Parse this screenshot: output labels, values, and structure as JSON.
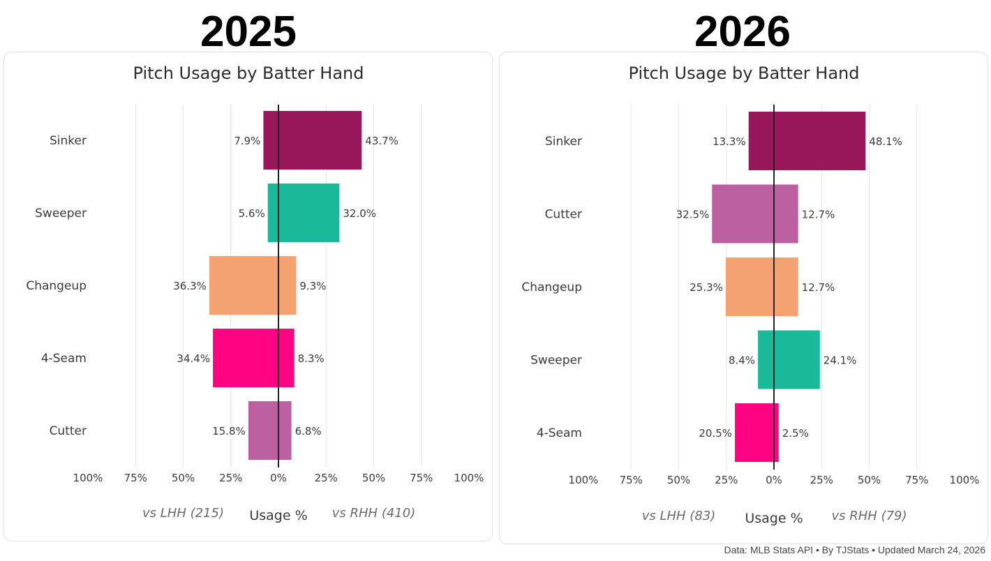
{
  "footer": "Data: MLB Stats API • By TJStats • Updated March 24, 2026",
  "chart_data": [
    {
      "type": "bar",
      "orientation": "horizontal-diverging",
      "year_label": "2025",
      "title": "Pitch Usage by Batter Hand",
      "xlabel": "Usage %",
      "xlim": [
        -100,
        100
      ],
      "x_tick_labels": [
        "100%",
        "75%",
        "50%",
        "25%",
        "0%",
        "25%",
        "50%",
        "75%",
        "100%"
      ],
      "left_label": "vs LHH (215)",
      "right_label": "vs RHH (410)",
      "categories": [
        "Sinker",
        "Sweeper",
        "Changeup",
        "4-Seam",
        "Cutter"
      ],
      "colors": [
        "#98165a",
        "#1ab99a",
        "#f5a272",
        "#fe0482",
        "#bc5fa0"
      ],
      "series": [
        {
          "name": "vs LHH",
          "values": [
            7.9,
            5.6,
            36.3,
            34.4,
            15.8
          ],
          "labels": [
            "7.9%",
            "5.6%",
            "36.3%",
            "34.4%",
            "15.8%"
          ]
        },
        {
          "name": "vs RHH",
          "values": [
            43.7,
            32.0,
            9.3,
            8.3,
            6.8
          ],
          "labels": [
            "43.7%",
            "32.0%",
            "9.3%",
            "8.3%",
            "6.8%"
          ]
        }
      ]
    },
    {
      "type": "bar",
      "orientation": "horizontal-diverging",
      "year_label": "2026",
      "title": "Pitch Usage by Batter Hand",
      "xlabel": "Usage %",
      "xlim": [
        -100,
        100
      ],
      "x_tick_labels": [
        "100%",
        "75%",
        "50%",
        "25%",
        "0%",
        "25%",
        "50%",
        "75%",
        "100%"
      ],
      "left_label": "vs LHH (83)",
      "right_label": "vs RHH (79)",
      "categories": [
        "Sinker",
        "Cutter",
        "Changeup",
        "Sweeper",
        "4-Seam"
      ],
      "colors": [
        "#98165a",
        "#bc5fa0",
        "#f5a272",
        "#1ab99a",
        "#fe0482"
      ],
      "series": [
        {
          "name": "vs LHH",
          "values": [
            13.3,
            32.5,
            25.3,
            8.4,
            20.5
          ],
          "labels": [
            "13.3%",
            "32.5%",
            "25.3%",
            "8.4%",
            "20.5%"
          ]
        },
        {
          "name": "vs RHH",
          "values": [
            48.1,
            12.7,
            12.7,
            24.1,
            2.5
          ],
          "labels": [
            "48.1%",
            "12.7%",
            "12.7%",
            "24.1%",
            "2.5%"
          ]
        }
      ]
    }
  ]
}
